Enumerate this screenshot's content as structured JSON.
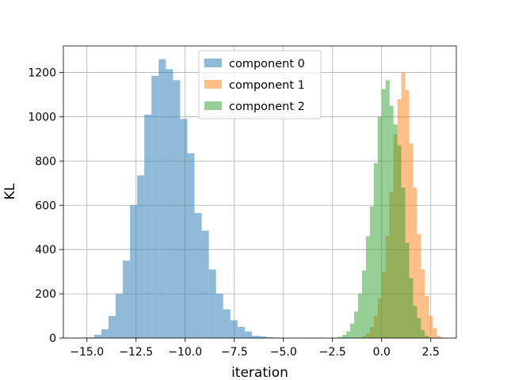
{
  "chart_data": {
    "type": "histogram",
    "title": "",
    "xlabel": "iteration",
    "ylabel": "KL",
    "xlim": [
      -16.2,
      3.8
    ],
    "ylim": [
      0,
      1320
    ],
    "xticks": [
      -15.0,
      -12.5,
      -10.0,
      -7.5,
      -5.0,
      -2.5,
      0.0,
      2.5
    ],
    "xtick_labels": [
      "−15.0",
      "−12.5",
      "−10.0",
      "−7.5",
      "−5.0",
      "−2.5",
      "0.0",
      "2.5"
    ],
    "yticks": [
      0,
      200,
      400,
      600,
      800,
      1000,
      1200
    ],
    "ytick_labels": [
      "0",
      "200",
      "400",
      "600",
      "800",
      "1000",
      "1200"
    ],
    "grid": true,
    "legend_position": "top-center",
    "series": [
      {
        "name": "component 0",
        "color": "#1f77b4",
        "alpha": 0.5,
        "bin_start": -15.0,
        "bin_width": 0.365,
        "counts": [
          3,
          15,
          40,
          100,
          200,
          350,
          600,
          735,
          1010,
          1185,
          1260,
          1215,
          1165,
          990,
          835,
          565,
          485,
          310,
          200,
          130,
          80,
          50,
          30,
          10,
          8,
          4,
          2
        ]
      },
      {
        "name": "component 1",
        "color": "#ff7f0e",
        "alpha": 0.5,
        "bin_start": -1.2,
        "bin_width": 0.2,
        "counts": [
          2,
          8,
          22,
          50,
          100,
          180,
          300,
          460,
          660,
          920,
          1080,
          1200,
          1120,
          880,
          680,
          470,
          310,
          190,
          100,
          45,
          10
        ]
      },
      {
        "name": "component 2",
        "color": "#2ca02c",
        "alpha": 0.5,
        "bin_start": -2.2,
        "bin_width": 0.2,
        "counts": [
          5,
          15,
          30,
          65,
          120,
          200,
          305,
          460,
          595,
          790,
          1000,
          1125,
          1165,
          1050,
          965,
          870,
          680,
          430,
          270,
          145,
          90,
          35,
          10
        ]
      }
    ]
  }
}
